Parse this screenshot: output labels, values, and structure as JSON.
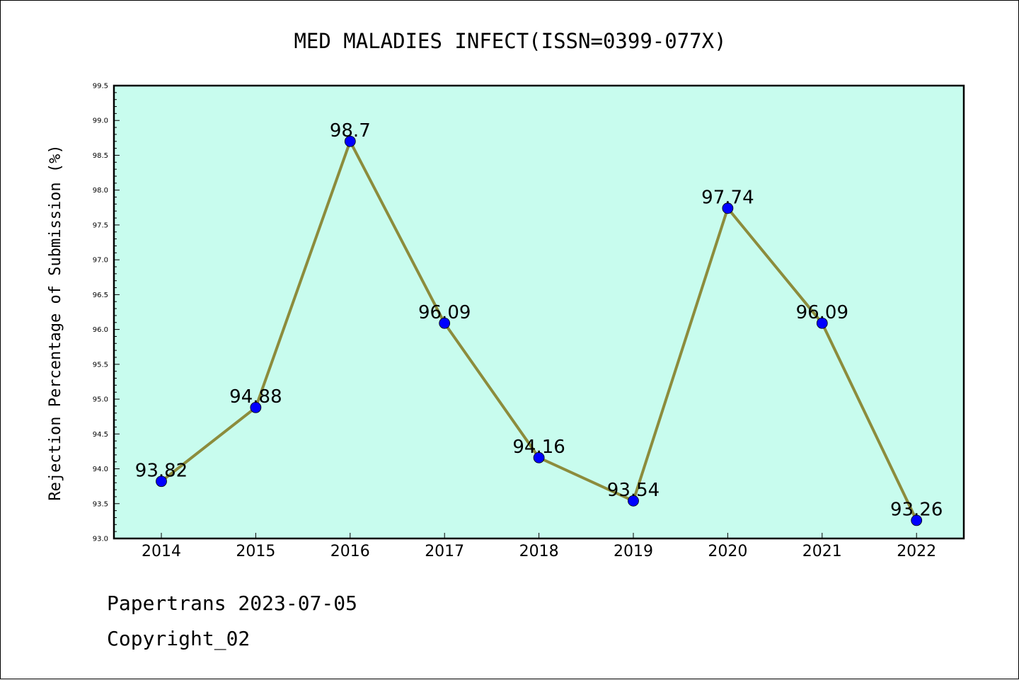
{
  "chart_data": {
    "type": "line",
    "title": "MED MALADIES INFECT(ISSN=0399-077X)",
    "xlabel": "",
    "ylabel": "Rejection Percentage of Submission (%)",
    "categories": [
      "2014",
      "2015",
      "2016",
      "2017",
      "2018",
      "2019",
      "2020",
      "2021",
      "2022"
    ],
    "values": [
      93.82,
      94.88,
      98.7,
      96.09,
      94.16,
      93.54,
      97.74,
      96.09,
      93.26
    ],
    "data_labels": [
      "93.82",
      "94.88",
      "98.7",
      "96.09",
      "94.16",
      "93.54",
      "97.74",
      "96.09",
      "93.26"
    ],
    "ylim": [
      93.0,
      99.5
    ],
    "yticks": [
      "93.0",
      "93.5",
      "94.0",
      "94.5",
      "95.0",
      "95.5",
      "96.0",
      "96.5",
      "97.0",
      "97.5",
      "98.0",
      "98.5",
      "99.0",
      "99.5"
    ],
    "grid": false,
    "colors": {
      "plot_background": "#c8fcee",
      "line": "#8c8c3c",
      "marker": "#0000ff"
    }
  },
  "footer": {
    "source": "Papertrans 2023-07-05",
    "copyright": "Copyright_02"
  }
}
